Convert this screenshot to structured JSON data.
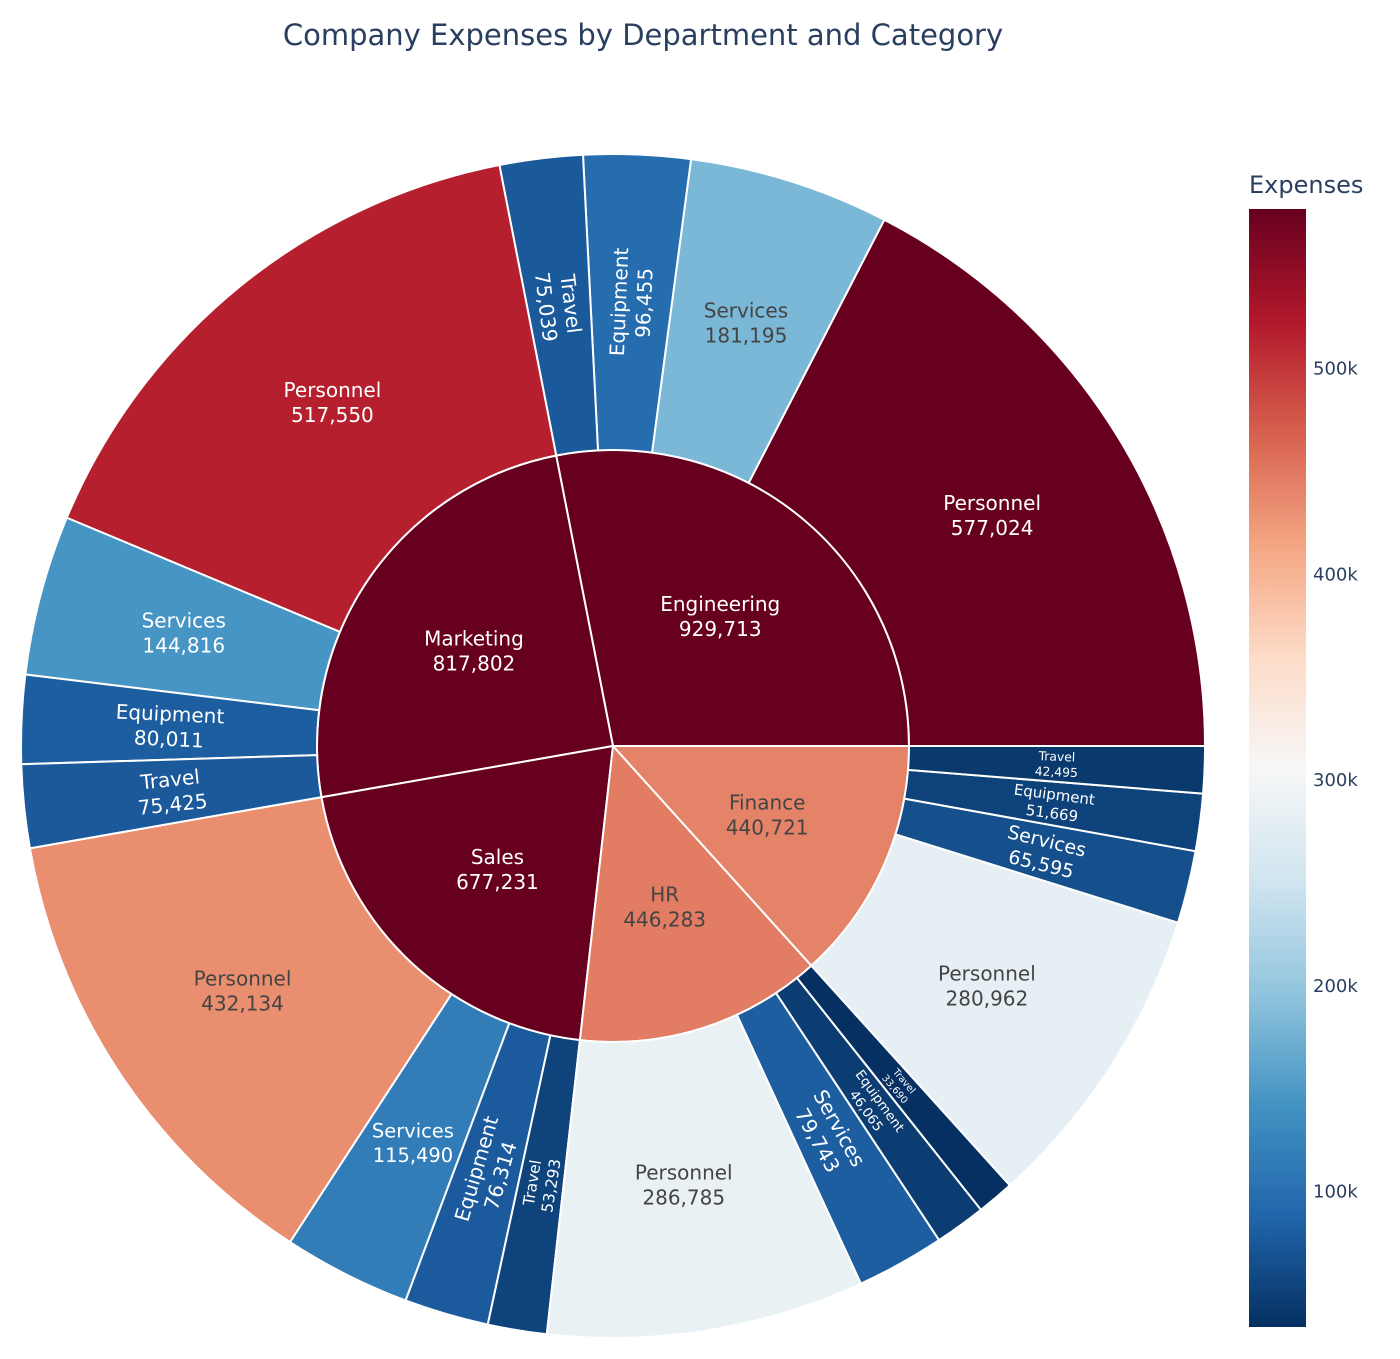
{
  "chart_data": {
    "type": "sunburst",
    "title": "Company Expenses by Department and Category",
    "colorbar": {
      "title": "Expenses",
      "colorscale": "RdBu (reversed)",
      "colors_low_to_high": [
        "#053061",
        "#2166ac",
        "#4393c3",
        "#92c5de",
        "#d1e5f0",
        "#f7f7f7",
        "#fddbc7",
        "#f4a582",
        "#d6604d",
        "#b2182b",
        "#67001f"
      ],
      "range": [
        33690,
        577024
      ],
      "ticks": [
        100000,
        200000,
        300000,
        400000,
        500000
      ],
      "tick_labels": [
        "100k",
        "200k",
        "300k",
        "400k",
        "500k"
      ]
    },
    "departments": [
      {
        "name": "Engineering",
        "value": 929713,
        "children": [
          {
            "name": "Personnel",
            "value": 577024
          },
          {
            "name": "Services",
            "value": 181195
          },
          {
            "name": "Equipment",
            "value": 96455
          },
          {
            "name": "Travel",
            "value": 75039
          }
        ]
      },
      {
        "name": "Marketing",
        "value": 817802,
        "children": [
          {
            "name": "Personnel",
            "value": 517550
          },
          {
            "name": "Services",
            "value": 144816
          },
          {
            "name": "Equipment",
            "value": 80011
          },
          {
            "name": "Travel",
            "value": 75425
          }
        ]
      },
      {
        "name": "Sales",
        "value": 677231,
        "children": [
          {
            "name": "Personnel",
            "value": 432134
          },
          {
            "name": "Services",
            "value": 115490
          },
          {
            "name": "Equipment",
            "value": 76314
          },
          {
            "name": "Travel",
            "value": 53293
          }
        ]
      },
      {
        "name": "HR",
        "value": 446283,
        "children": [
          {
            "name": "Personnel",
            "value": 286785
          },
          {
            "name": "Services",
            "value": 79743
          },
          {
            "name": "Equipment",
            "value": 46065
          },
          {
            "name": "Travel",
            "value": 33690
          }
        ]
      },
      {
        "name": "Finance",
        "value": 440721,
        "children": [
          {
            "name": "Personnel",
            "value": 280962
          },
          {
            "name": "Services",
            "value": 65595
          },
          {
            "name": "Equipment",
            "value": 51669
          },
          {
            "name": "Travel",
            "value": 42495
          }
        ]
      }
    ]
  }
}
